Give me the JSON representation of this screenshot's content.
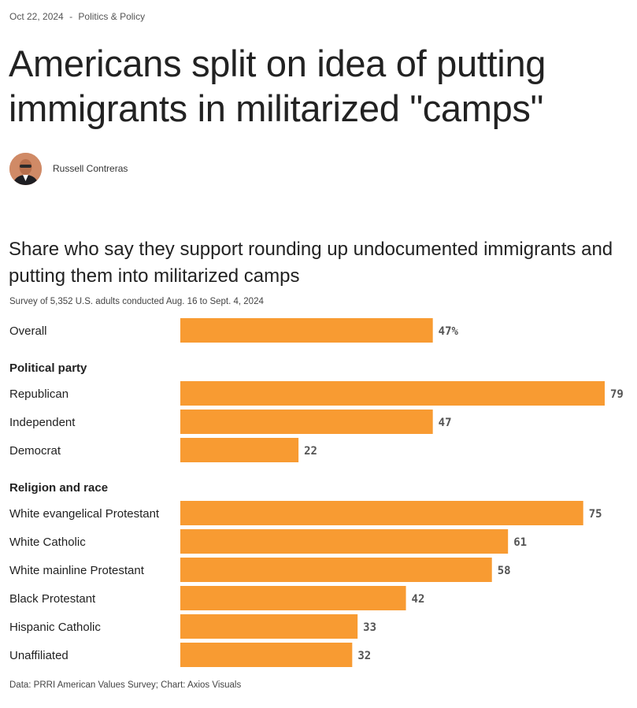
{
  "article": {
    "date": "Oct 22, 2024",
    "separator": "-",
    "section": "Politics & Policy",
    "headline": "Americans split on idea of putting immigrants in militarized \"camps\"",
    "author": "Russell Contreras"
  },
  "colors": {
    "bar": "#f89b32",
    "text": "#222222",
    "muted": "#555555"
  },
  "chart_data": {
    "type": "bar",
    "orientation": "horizontal",
    "title": "Share who say they support rounding up undocumented immigrants and putting them into militarized camps",
    "subtitle": "Survey of 5,352 U.S. adults conducted Aug. 16 to Sept. 4, 2024",
    "source": "Data: PRRI American Values Survey; Chart: Axios Visuals",
    "value_range": [
      0,
      100
    ],
    "grid": false,
    "groups": [
      {
        "heading": "",
        "rows": [
          {
            "label": "Overall",
            "value": 47,
            "value_label": "47%"
          }
        ]
      },
      {
        "heading": "Political party",
        "rows": [
          {
            "label": "Republican",
            "value": 79,
            "value_label": "79"
          },
          {
            "label": "Independent",
            "value": 47,
            "value_label": "47"
          },
          {
            "label": "Democrat",
            "value": 22,
            "value_label": "22"
          }
        ]
      },
      {
        "heading": "Religion and race",
        "rows": [
          {
            "label": "White evangelical Protestant",
            "value": 75,
            "value_label": "75"
          },
          {
            "label": "White Catholic",
            "value": 61,
            "value_label": "61"
          },
          {
            "label": "White mainline Protestant",
            "value": 58,
            "value_label": "58"
          },
          {
            "label": "Black Protestant",
            "value": 42,
            "value_label": "42"
          },
          {
            "label": "Hispanic Catholic",
            "value": 33,
            "value_label": "33"
          },
          {
            "label": "Unaffiliated",
            "value": 32,
            "value_label": "32"
          }
        ]
      }
    ]
  }
}
